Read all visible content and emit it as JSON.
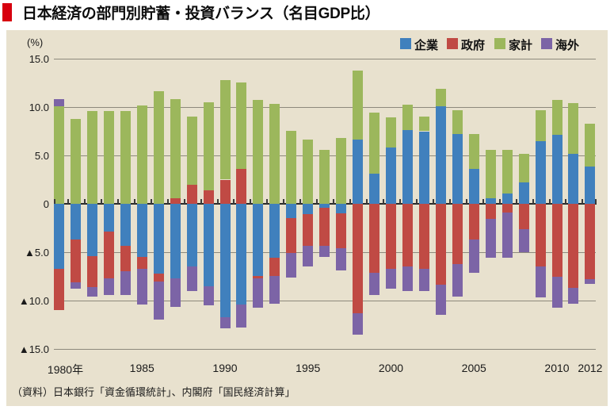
{
  "title": "日本経済の部門別貯蓄・投資バランス（名目GDP比）",
  "source_note": "（資料）日本銀行「資金循環統計」、内閣府「国民経済計算」",
  "chart_data": {
    "type": "bar",
    "subtype": "stacked-bar-diverging",
    "unit_label": "(%)",
    "ylim": [
      -15,
      15
    ],
    "y_ticks": [
      {
        "value": 15,
        "label": "15.0"
      },
      {
        "value": 10,
        "label": "10.0"
      },
      {
        "value": 5,
        "label": "5.0"
      },
      {
        "value": 0,
        "label": "0"
      },
      {
        "value": -5,
        "label": "▲5.0"
      },
      {
        "value": -10,
        "label": "▲10.0"
      },
      {
        "value": -15,
        "label": "▲15.0"
      }
    ],
    "x_tick_labels": [
      {
        "year": 1980,
        "label": "1980年"
      },
      {
        "year": 1985,
        "label": "1985"
      },
      {
        "year": 1990,
        "label": "1990"
      },
      {
        "year": 1995,
        "label": "1995"
      },
      {
        "year": 2000,
        "label": "2000"
      },
      {
        "year": 2005,
        "label": "2005"
      },
      {
        "year": 2010,
        "label": "2010"
      },
      {
        "year": 2012,
        "label": "2012"
      }
    ],
    "years": [
      1980,
      1981,
      1982,
      1983,
      1984,
      1985,
      1986,
      1987,
      1988,
      1989,
      1990,
      1991,
      1992,
      1993,
      1994,
      1995,
      1996,
      1997,
      1998,
      1999,
      2000,
      2001,
      2002,
      2003,
      2004,
      2005,
      2006,
      2007,
      2008,
      2009,
      2010,
      2011,
      2012
    ],
    "series": [
      {
        "name": "企業",
        "color": "#4080bd",
        "values": [
          -6.7,
          -3.7,
          -5.4,
          -2.9,
          -4.35,
          -5.5,
          -7.2,
          -7.7,
          -6.5,
          -8.55,
          -11.75,
          -10.45,
          -7.45,
          -5.6,
          -1.5,
          -1.05,
          -0.4,
          -1.0,
          6.6,
          3.15,
          5.8,
          7.6,
          7.5,
          10.1,
          7.2,
          3.6,
          0.6,
          1.1,
          2.2,
          6.5,
          7.1,
          5.2,
          3.85
        ]
      },
      {
        "name": "政府",
        "color": "#c04a44",
        "values": [
          -4.3,
          -4.4,
          -3.2,
          -4.8,
          -2.65,
          -1.25,
          -0.8,
          0.6,
          2.0,
          1.4,
          2.5,
          3.6,
          -0.25,
          -1.85,
          -3.55,
          -3.3,
          -3.95,
          -3.6,
          -11.3,
          -7.15,
          -6.7,
          -6.5,
          -6.7,
          -8.4,
          -6.25,
          -3.7,
          -1.55,
          -0.9,
          -2.65,
          -6.5,
          -7.5,
          -8.7,
          -7.8
        ]
      },
      {
        "name": "家計",
        "color": "#9cb75c",
        "values": [
          10.1,
          8.8,
          9.6,
          9.6,
          9.6,
          10.2,
          11.6,
          10.2,
          7.0,
          9.1,
          10.3,
          8.95,
          10.75,
          10.35,
          7.55,
          6.6,
          5.55,
          6.8,
          7.2,
          6.25,
          3.1,
          2.65,
          1.5,
          1.8,
          2.45,
          3.6,
          5.0,
          4.45,
          2.95,
          3.2,
          3.6,
          5.2,
          4.45
        ]
      },
      {
        "name": "海外",
        "color": "#7c64a6",
        "values": [
          0.7,
          -0.7,
          -1.0,
          -1.7,
          -2.45,
          -3.7,
          -4.0,
          -2.95,
          -2.5,
          -1.95,
          -1.15,
          -2.35,
          -3.0,
          -2.85,
          -2.6,
          -2.1,
          -1.15,
          -2.3,
          -2.2,
          -2.25,
          -2.1,
          -2.55,
          -2.35,
          -3.1,
          -3.35,
          -3.4,
          -4.05,
          -4.7,
          -2.35,
          -3.2,
          -3.2,
          -1.65,
          -0.5
        ]
      }
    ],
    "legend_position": "top-right",
    "grid": true
  }
}
